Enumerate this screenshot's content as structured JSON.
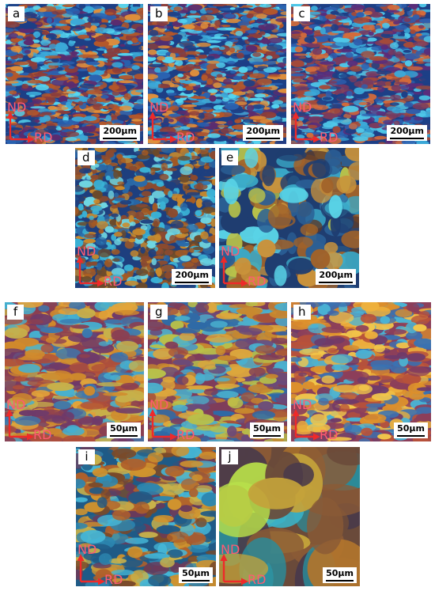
{
  "figure": {
    "panels": [
      {
        "label": "a",
        "scale_bar": "200µm",
        "axis_nd": "ND",
        "axis_rd": "RD",
        "palette": [
          "#1d3f86",
          "#2a62b0",
          "#3ba9d8",
          "#55d6f0",
          "#b4572a",
          "#8c3d3a",
          "#e0903b",
          "#5b2c6f"
        ]
      },
      {
        "label": "b",
        "scale_bar": "200µm",
        "axis_nd": "ND",
        "axis_rd": "RD",
        "palette": [
          "#1d3f86",
          "#2a62b0",
          "#3ba9d8",
          "#55d6f0",
          "#b4572a",
          "#8c3d3a",
          "#e0903b",
          "#5b2c6f"
        ]
      },
      {
        "label": "c",
        "scale_bar": "200µm",
        "axis_nd": "ND",
        "axis_rd": "RD",
        "palette": [
          "#1d3f86",
          "#2f5fae",
          "#3ba9d8",
          "#4fc7e8",
          "#a34a3a",
          "#7a3b5e",
          "#d46b3a",
          "#5a2d7a"
        ]
      },
      {
        "label": "d",
        "scale_bar": "200µm",
        "axis_nd": "ND",
        "axis_rd": "RD",
        "palette": [
          "#1e3f7e",
          "#2a6aa8",
          "#3ab3d6",
          "#6fd6e2",
          "#a55a22",
          "#c98a2c",
          "#6b4a2a",
          "#8c4a2e"
        ]
      },
      {
        "label": "e",
        "scale_bar": "200µm",
        "axis_nd": "ND",
        "axis_rd": "RD",
        "palette": [
          "#1f3d70",
          "#2b5f95",
          "#3aa8c7",
          "#59d3e6",
          "#a0622a",
          "#c9923b",
          "#b8c24a",
          "#5b3a2a"
        ]
      },
      {
        "label": "f",
        "scale_bar": "50µm",
        "axis_nd": "ND",
        "axis_rd": "RD",
        "palette": [
          "#8a3f52",
          "#b0503a",
          "#d08a2c",
          "#e2a43a",
          "#3a78b0",
          "#45b0d0",
          "#6e3a6a",
          "#c7b04a"
        ]
      },
      {
        "label": "g",
        "scale_bar": "50µm",
        "axis_nd": "ND",
        "axis_rd": "RD",
        "palette": [
          "#7f3d5a",
          "#a5523a",
          "#c8882e",
          "#dca63c",
          "#2f6aa6",
          "#4ab0ce",
          "#6a4a7a",
          "#b8c04a"
        ]
      },
      {
        "label": "h",
        "scale_bar": "50µm",
        "axis_nd": "ND",
        "axis_rd": "RD",
        "palette": [
          "#8c3f5a",
          "#b8523a",
          "#dc8f2c",
          "#eeb13c",
          "#3a72b2",
          "#4ab3d4",
          "#6e3a6a",
          "#f2c64a"
        ]
      },
      {
        "label": "i",
        "scale_bar": "50µm",
        "axis_nd": "ND",
        "axis_rd": "RD",
        "palette": [
          "#1f5a86",
          "#2c86b0",
          "#45b6d6",
          "#b0602a",
          "#d0932e",
          "#7a4a2a",
          "#c9b24a",
          "#6a3a5a"
        ]
      },
      {
        "label": "j",
        "scale_bar": "50µm",
        "axis_nd": "ND",
        "axis_rd": "RD",
        "palette": [
          "#6a4a3a",
          "#8a5a36",
          "#b0742c",
          "#c4a33a",
          "#2a8c9a",
          "#3ab3c7",
          "#b8e04a",
          "#4a3a4a"
        ]
      }
    ],
    "colors": {
      "axis_arrow": "#ee2a2a",
      "axis_text": "#ff5a72",
      "scale_box": "#ffffff"
    }
  }
}
